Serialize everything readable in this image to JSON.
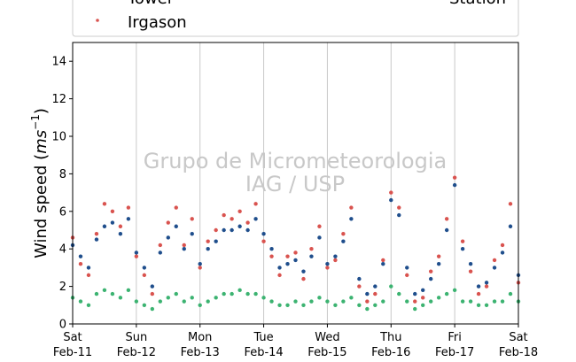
{
  "chart_data": {
    "type": "scatter",
    "title": "",
    "ylabel_main": "Wind speed (",
    "ylabel_unit": "ms",
    "ylabel_exp": "−1",
    "ylabel_close": ")",
    "xlabel": "",
    "ylim": [
      0,
      15
    ],
    "yticks": [
      0,
      2,
      4,
      6,
      8,
      10,
      12,
      14
    ],
    "xlim_days": [
      0,
      7
    ],
    "xticks": [
      {
        "d": 0,
        "line1": "Sat",
        "line2": "Feb-11"
      },
      {
        "d": 1,
        "line1": "Sun",
        "line2": "Feb-12"
      },
      {
        "d": 2,
        "line1": "Mon",
        "line2": "Feb-13"
      },
      {
        "d": 3,
        "line1": "Tue",
        "line2": "Feb-14"
      },
      {
        "d": 4,
        "line1": "Wed",
        "line2": "Feb-15"
      },
      {
        "d": 5,
        "line1": "Thu",
        "line2": "Feb-16"
      },
      {
        "d": 6,
        "line1": "Fri",
        "line2": "Feb-17"
      },
      {
        "d": 7,
        "line1": "Sat",
        "line2": "Feb-18"
      }
    ],
    "grid": "vertical",
    "legend": {
      "placement": "top",
      "entries": [
        {
          "label": "Tower",
          "color": "#1f4e8c"
        },
        {
          "label": "Irgason",
          "color": "#d9534f"
        },
        {
          "label": "Station",
          "color": "#3cb371"
        }
      ]
    },
    "watermark": {
      "line1": "Grupo de Micrometeorologia",
      "line2": "IAG / USP"
    },
    "series": [
      {
        "name": "Tower",
        "color": "#1f4e8c",
        "x": [
          0.0,
          0.125,
          0.25,
          0.375,
          0.5,
          0.625,
          0.75,
          0.875,
          1.0,
          1.125,
          1.25,
          1.375,
          1.5,
          1.625,
          1.75,
          1.875,
          2.0,
          2.125,
          2.25,
          2.375,
          2.5,
          2.625,
          2.75,
          2.875,
          3.0,
          3.125,
          3.25,
          3.375,
          3.5,
          3.625,
          3.75,
          3.875,
          4.0,
          4.125,
          4.25,
          4.375,
          4.5,
          4.625,
          4.75,
          4.875,
          5.0,
          5.125,
          5.25,
          5.375,
          5.5,
          5.625,
          5.75,
          5.875,
          6.0,
          6.125,
          6.25,
          6.375,
          6.5,
          6.625,
          6.75,
          6.875,
          7.0
        ],
        "y": [
          4.2,
          3.6,
          3.0,
          4.5,
          5.2,
          5.4,
          4.8,
          5.6,
          3.8,
          3.0,
          2.0,
          3.8,
          4.6,
          5.2,
          4.0,
          4.8,
          3.2,
          4.0,
          4.4,
          5.0,
          5.0,
          5.2,
          5.0,
          5.6,
          4.8,
          4.0,
          3.0,
          3.2,
          3.4,
          2.8,
          3.6,
          4.6,
          3.2,
          3.6,
          4.4,
          5.6,
          2.4,
          1.6,
          2.0,
          3.2,
          6.6,
          5.8,
          3.0,
          1.6,
          1.8,
          2.4,
          3.2,
          5.0,
          7.4,
          4.0,
          3.2,
          2.0,
          2.2,
          3.0,
          3.8,
          5.2,
          2.6
        ]
      },
      {
        "name": "Irgason",
        "color": "#d9534f",
        "x": [
          0.0,
          0.125,
          0.25,
          0.375,
          0.5,
          0.625,
          0.75,
          0.875,
          1.0,
          1.125,
          1.25,
          1.375,
          1.5,
          1.625,
          1.75,
          1.875,
          2.0,
          2.125,
          2.25,
          2.375,
          2.5,
          2.625,
          2.75,
          2.875,
          3.0,
          3.125,
          3.25,
          3.375,
          3.5,
          3.625,
          3.75,
          3.875,
          4.0,
          4.125,
          4.25,
          4.375,
          4.5,
          4.625,
          4.75,
          4.875,
          5.0,
          5.125,
          5.25,
          5.375,
          5.5,
          5.625,
          5.75,
          5.875,
          6.0,
          6.125,
          6.25,
          6.375,
          6.5,
          6.625,
          6.75,
          6.875,
          7.0
        ],
        "y": [
          4.6,
          3.2,
          2.6,
          4.8,
          6.4,
          6.0,
          5.2,
          6.2,
          3.6,
          2.6,
          1.6,
          4.2,
          5.4,
          6.2,
          4.2,
          5.6,
          3.0,
          4.4,
          5.0,
          5.8,
          5.6,
          6.0,
          5.4,
          6.4,
          4.4,
          3.6,
          2.6,
          3.6,
          3.8,
          2.4,
          4.0,
          5.2,
          3.0,
          3.4,
          4.8,
          6.2,
          2.0,
          1.2,
          1.6,
          3.4,
          7.0,
          6.2,
          2.6,
          1.2,
          1.4,
          2.8,
          3.6,
          5.6,
          7.8,
          4.4,
          2.8,
          1.6,
          2.0,
          3.4,
          4.2,
          6.4,
          2.2
        ]
      },
      {
        "name": "Station",
        "color": "#3cb371",
        "x": [
          0.0,
          0.125,
          0.25,
          0.375,
          0.5,
          0.625,
          0.75,
          0.875,
          1.0,
          1.125,
          1.25,
          1.375,
          1.5,
          1.625,
          1.75,
          1.875,
          2.0,
          2.125,
          2.25,
          2.375,
          2.5,
          2.625,
          2.75,
          2.875,
          3.0,
          3.125,
          3.25,
          3.375,
          3.5,
          3.625,
          3.75,
          3.875,
          4.0,
          4.125,
          4.25,
          4.375,
          4.5,
          4.625,
          4.75,
          4.875,
          5.0,
          5.125,
          5.25,
          5.375,
          5.5,
          5.625,
          5.75,
          5.875,
          6.0,
          6.125,
          6.25,
          6.375,
          6.5,
          6.625,
          6.75,
          6.875,
          7.0
        ],
        "y": [
          1.4,
          1.2,
          1.0,
          1.6,
          1.8,
          1.6,
          1.4,
          1.8,
          1.2,
          1.0,
          0.8,
          1.2,
          1.4,
          1.6,
          1.2,
          1.4,
          1.0,
          1.2,
          1.4,
          1.6,
          1.6,
          1.8,
          1.6,
          1.6,
          1.4,
          1.2,
          1.0,
          1.0,
          1.2,
          1.0,
          1.2,
          1.4,
          1.2,
          1.0,
          1.2,
          1.4,
          1.0,
          0.8,
          1.0,
          1.2,
          2.0,
          1.6,
          1.2,
          0.8,
          1.0,
          1.2,
          1.4,
          1.6,
          1.8,
          1.2,
          1.2,
          1.0,
          1.0,
          1.2,
          1.2,
          1.6,
          1.2
        ]
      }
    ]
  }
}
